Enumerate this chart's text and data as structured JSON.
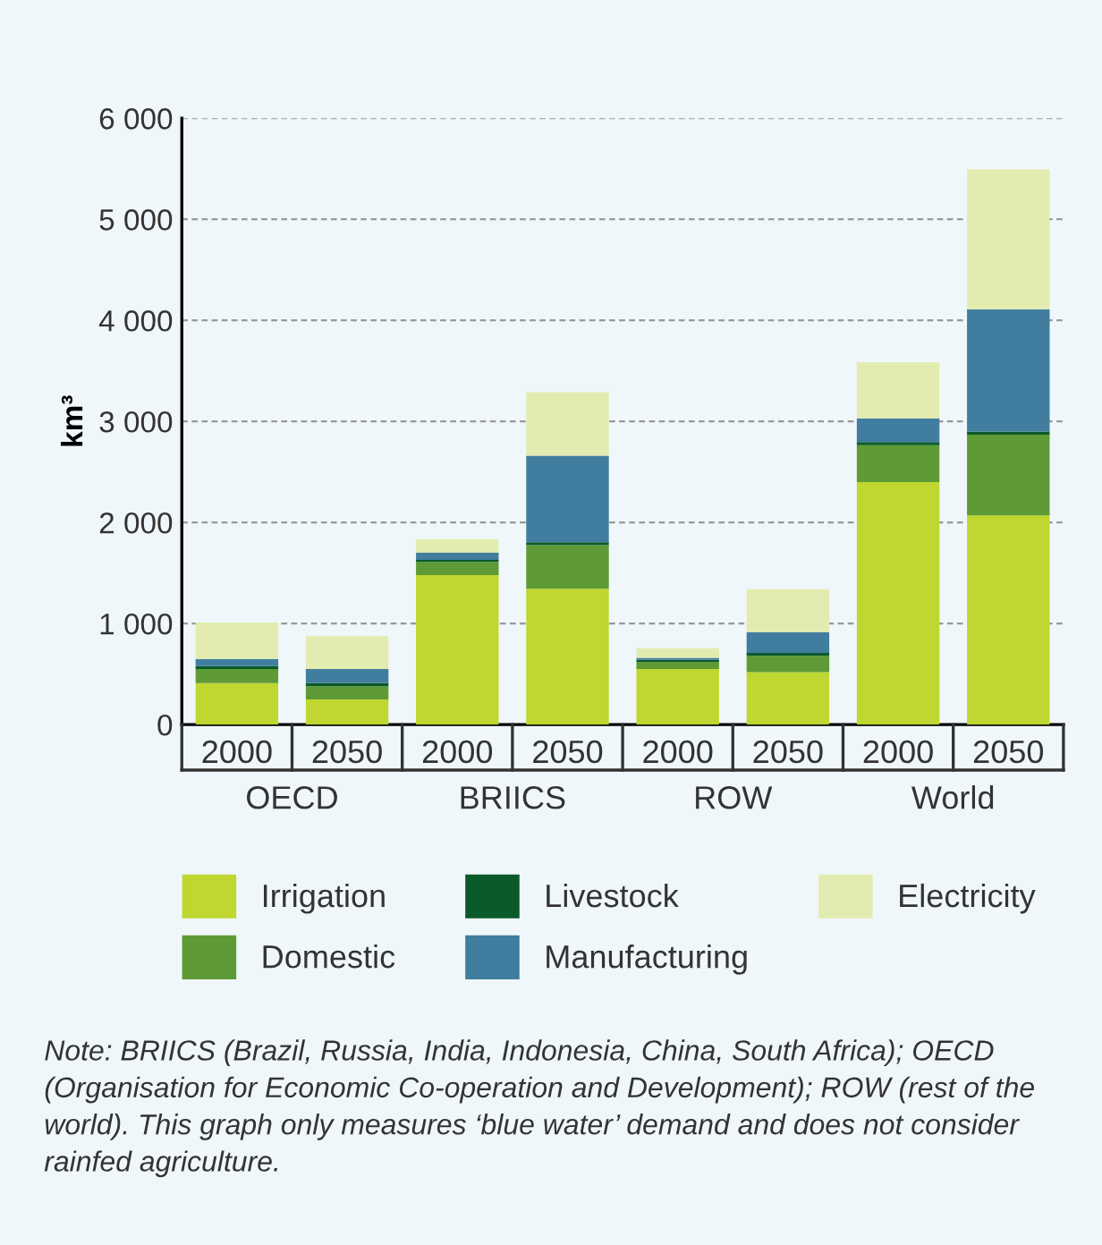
{
  "chart_data": {
    "type": "bar",
    "stacked": true,
    "ylabel": "km³",
    "categories": [
      "2000",
      "2050",
      "2000",
      "2050",
      "2000",
      "2050",
      "2000",
      "2050"
    ],
    "series": [
      {
        "name": "Irrigation",
        "color": "#bfd730",
        "values": [
          410,
          250,
          1480,
          1345,
          550,
          520,
          2400,
          2070
        ]
      },
      {
        "name": "Domestic",
        "color": "#5e9a35",
        "values": [
          140,
          130,
          130,
          430,
          70,
          160,
          365,
          800
        ]
      },
      {
        "name": "Livestock",
        "color": "#0b5a2a",
        "values": [
          30,
          30,
          20,
          30,
          20,
          30,
          30,
          30
        ]
      },
      {
        "name": "Manufacturing",
        "color": "#417d9e",
        "values": [
          70,
          140,
          70,
          855,
          20,
          205,
          235,
          1210
        ]
      },
      {
        "name": "Electricity",
        "color": "#e2ecb0",
        "values": [
          360,
          325,
          135,
          630,
          95,
          425,
          555,
          1385
        ]
      }
    ],
    "ylim": [
      0,
      6000
    ],
    "yticks": [
      0,
      {
        "value": 1000,
        "label": "1 000"
      },
      {
        "value": 2000,
        "label": "2 000"
      },
      {
        "value": 3000,
        "label": "3 000"
      },
      {
        "value": 4000,
        "label": "4 000"
      },
      {
        "value": 5000,
        "label": "5 000"
      },
      {
        "value": 6000,
        "label": "6 000"
      }
    ],
    "grid": "y",
    "legend": "bottom",
    "annotations": [
      "OECD",
      "BRIICS",
      "ROW",
      "World",
      "Note: BRIICS (Brazil, Russia, India, Indonesia, China, South Africa); OECD (Organisation for Economic Co-operation and Development); ROW (rest of the world). This graph only measures ‘blue water’ demand and does not consider rainfed agriculture."
    ]
  }
}
